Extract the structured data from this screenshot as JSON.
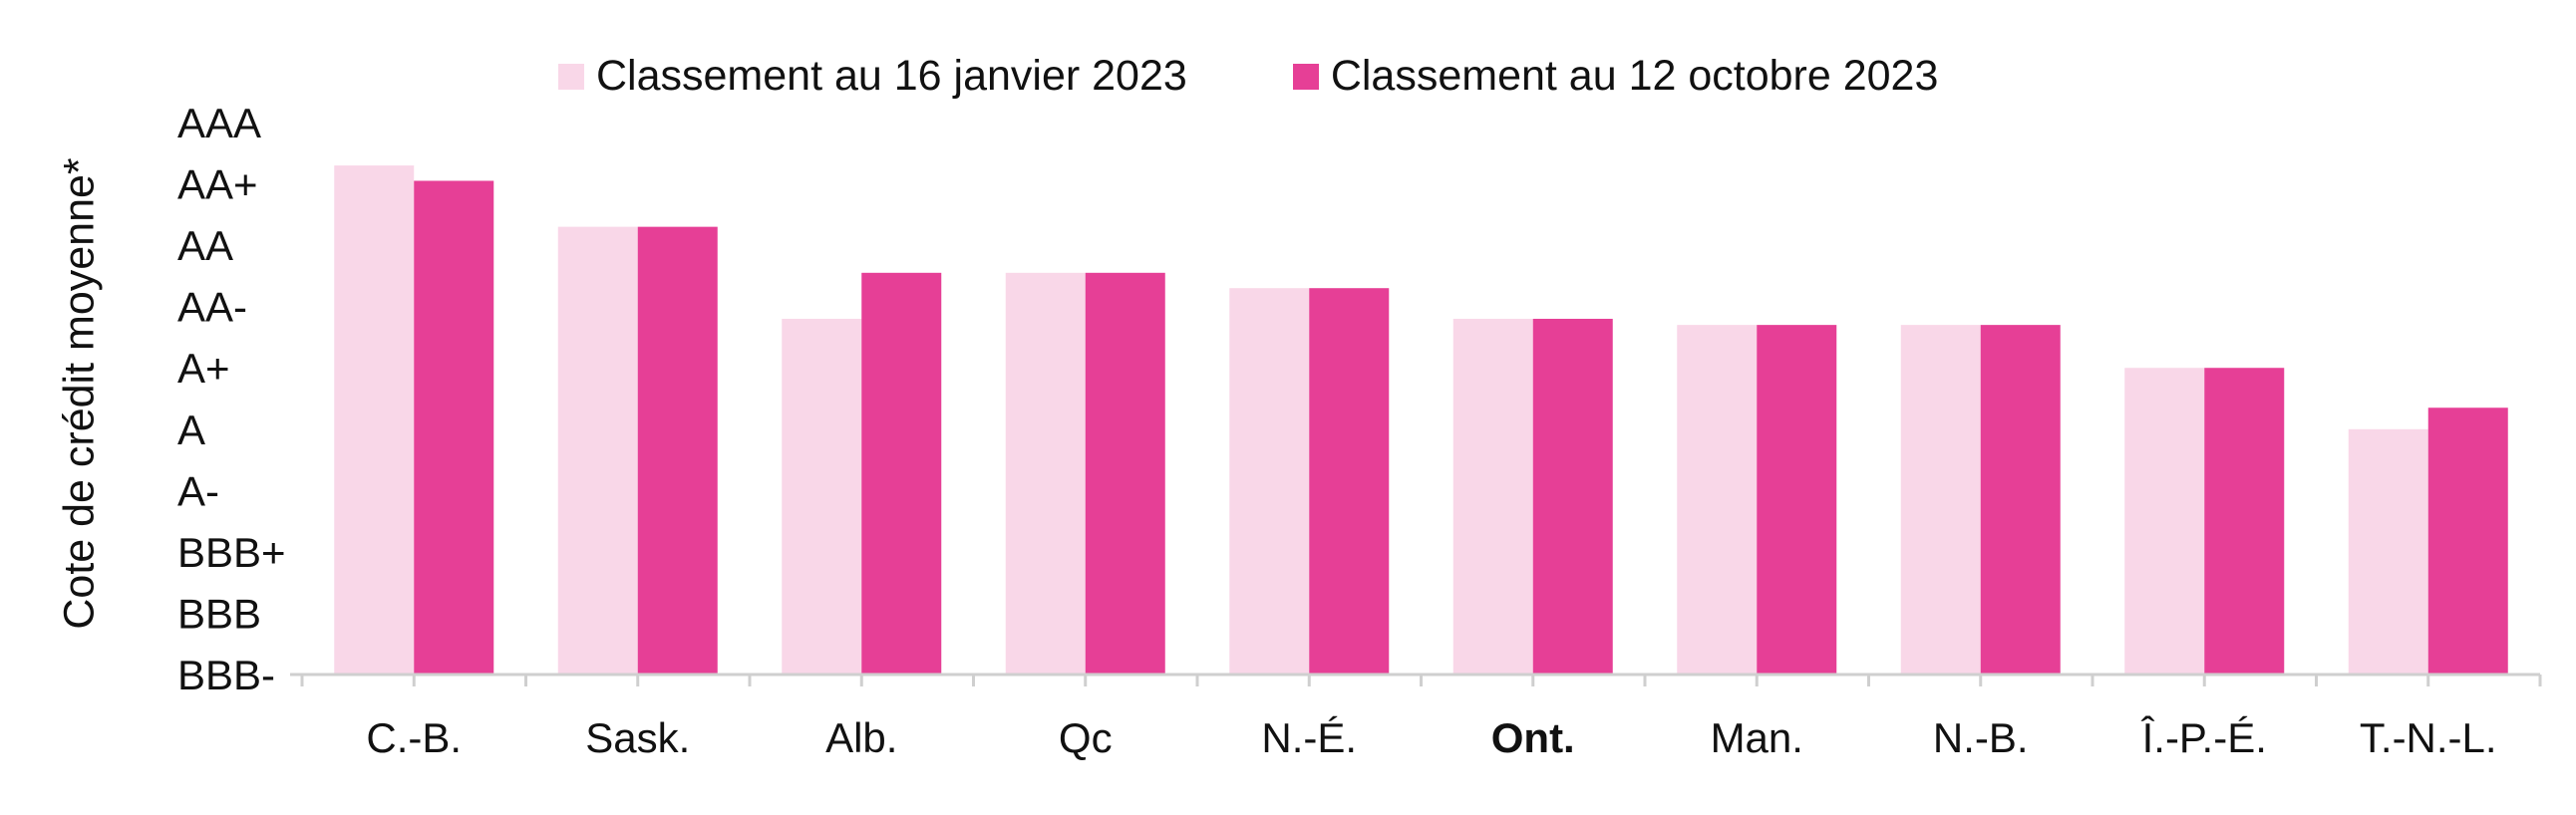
{
  "chart_data": {
    "type": "bar",
    "title": "",
    "xlabel": "",
    "ylabel": "Cote de crédit moyenne*",
    "y_ticks": [
      "AAA",
      "AA+",
      "AA",
      "AA-",
      "A+",
      "A",
      "A-",
      "BBB+",
      "BBB",
      "BBB-"
    ],
    "ylim": [
      0,
      9
    ],
    "grid": false,
    "legend_position": "top",
    "categories": [
      "C.-B.",
      "Sask.",
      "Alb.",
      "Qc",
      "N.-É.",
      "Ont.",
      "Man.",
      "N.-B.",
      "Î.-P.-É.",
      "T.-N.-L."
    ],
    "bold_category": "Ont.",
    "series": [
      {
        "name": "Classement au 16 janvier 2023",
        "color": "#f9d7e8",
        "values": [
          8.3,
          7.3,
          5.8,
          6.55,
          6.3,
          5.8,
          5.7,
          5.7,
          5.0,
          4.0
        ]
      },
      {
        "name": "Classement au 12 octobre 2023",
        "color": "#e63f96",
        "values": [
          8.05,
          7.3,
          6.55,
          6.55,
          6.3,
          5.8,
          5.7,
          5.7,
          5.0,
          4.35
        ]
      }
    ]
  }
}
